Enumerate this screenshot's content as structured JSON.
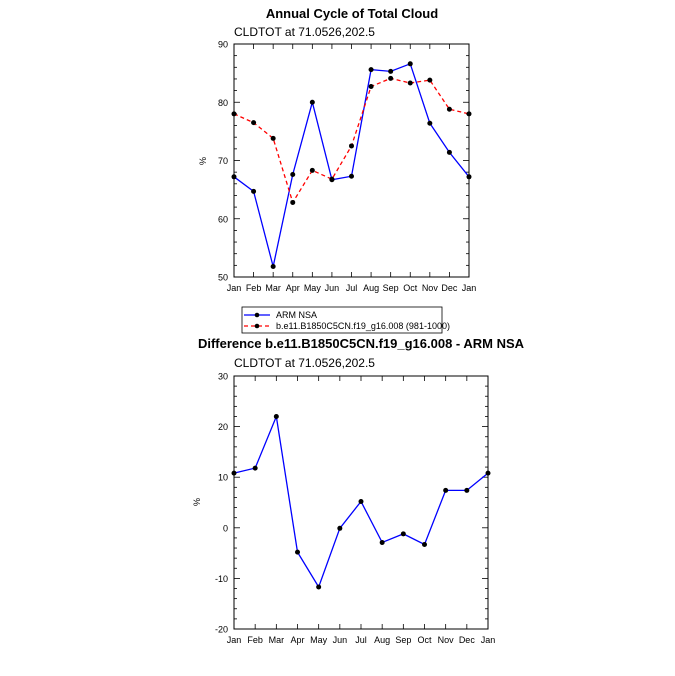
{
  "chart_data": [
    {
      "type": "line",
      "title": "Annual Cycle of Total Cloud",
      "subtitle": "CLDTOT at 71.0526,202.5",
      "xlabel": "",
      "ylabel": "%",
      "categories": [
        "Jan",
        "Feb",
        "Mar",
        "Apr",
        "May",
        "Jun",
        "Jul",
        "Aug",
        "Sep",
        "Oct",
        "Nov",
        "Dec",
        "Jan"
      ],
      "ylim": [
        50,
        90
      ],
      "yticks": [
        50,
        60,
        70,
        80,
        90
      ],
      "series": [
        {
          "name": "ARM NSA",
          "color": "#0000ff",
          "dash": "solid",
          "values": [
            67.2,
            64.7,
            51.8,
            67.6,
            80.0,
            66.7,
            67.3,
            85.6,
            85.3,
            86.6,
            76.4,
            71.4,
            67.2
          ]
        },
        {
          "name": "b.e11.B1850C5CN.f19_g16.008 (981-1000)",
          "color": "#ff0000",
          "dash": "dashed",
          "values": [
            78.0,
            76.5,
            73.8,
            62.8,
            68.3,
            66.8,
            72.5,
            82.7,
            84.1,
            83.3,
            83.8,
            78.8,
            78.0
          ]
        }
      ],
      "legend": "bottom"
    },
    {
      "type": "line",
      "title": "Difference b.e11.B1850C5CN.f19_g16.008 - ARM NSA",
      "subtitle": "CLDTOT at 71.0526,202.5",
      "xlabel": "",
      "ylabel": "%",
      "categories": [
        "Jan",
        "Feb",
        "Mar",
        "Apr",
        "May",
        "Jun",
        "Jul",
        "Aug",
        "Sep",
        "Oct",
        "Nov",
        "Dec",
        "Jan"
      ],
      "ylim": [
        -20,
        30
      ],
      "yticks": [
        -20,
        -10,
        0,
        10,
        20,
        30
      ],
      "series": [
        {
          "name": "Difference",
          "color": "#0000ff",
          "dash": "solid",
          "values": [
            10.8,
            11.8,
            22.0,
            -4.8,
            -11.7,
            -0.1,
            5.2,
            -2.9,
            -1.2,
            -3.3,
            7.4,
            7.4,
            10.8
          ]
        }
      ]
    }
  ]
}
